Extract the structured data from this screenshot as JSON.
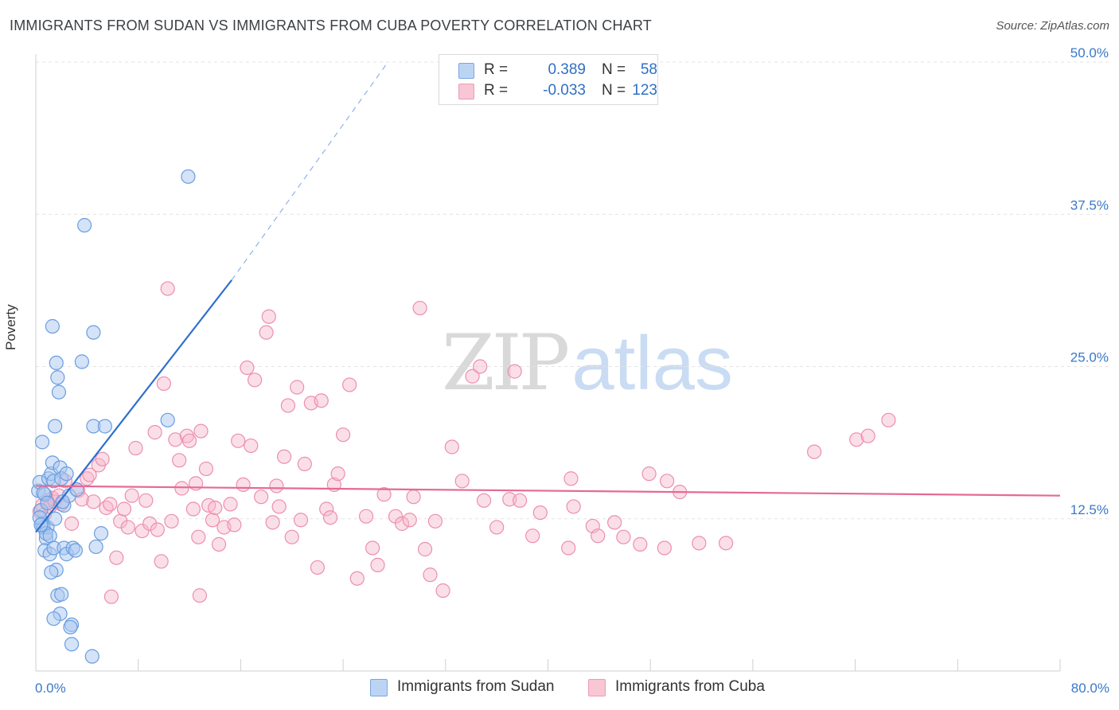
{
  "header": {
    "title": "IMMIGRANTS FROM SUDAN VS IMMIGRANTS FROM CUBA POVERTY CORRELATION CHART",
    "source": "Source: ZipAtlas.com"
  },
  "colors": {
    "sudan_fill": "#a9c8f0",
    "sudan_stroke": "#6a9de0",
    "sudan_line": "#2e6fce",
    "cuba_fill": "#f6b9cc",
    "cuba_stroke": "#ec8fac",
    "cuba_line": "#e56a95",
    "grid": "#e3e3e3",
    "axis_label": "#3a78c9"
  },
  "legend": {
    "rows": [
      {
        "r_label": "R =",
        "r_value": "0.389",
        "n_label": "N =",
        "n_value": "58"
      },
      {
        "r_label": "R =",
        "r_value": "-0.033",
        "n_label": "N =",
        "n_value": "123"
      }
    ]
  },
  "bottom_legend": {
    "sudan": "Immigrants from Sudan",
    "cuba": "Immigrants from Cuba"
  },
  "watermark": {
    "zip": "ZIP",
    "atlas": "atlas"
  },
  "chart_data": {
    "type": "scatter",
    "title": "IMMIGRANTS FROM SUDAN VS IMMIGRANTS FROM CUBA POVERTY CORRELATION CHART",
    "xlabel": "",
    "ylabel": "Poverty",
    "xlim": [
      0,
      80
    ],
    "ylim": [
      0,
      50
    ],
    "x_tick_labels": [
      "0.0%",
      "80.0%"
    ],
    "y_ticks": [
      {
        "value": 12.5,
        "label": "12.5%"
      },
      {
        "value": 25.0,
        "label": "25.0%"
      },
      {
        "value": 37.5,
        "label": "37.5%"
      },
      {
        "value": 50.0,
        "label": "50.0%"
      }
    ],
    "series": [
      {
        "name": "Immigrants from Sudan",
        "R": 0.389,
        "N": 58,
        "trend": {
          "x0": 0.0,
          "y0": 11.4,
          "x1": 15.3,
          "y1": 32.1,
          "dash_to_x": 27.5,
          "dash_to_y": 50.0
        },
        "points": [
          [
            0.2,
            14.8
          ],
          [
            0.3,
            15.5
          ],
          [
            0.4,
            13.2
          ],
          [
            0.5,
            12.1
          ],
          [
            0.6,
            11.8
          ],
          [
            0.7,
            14.5
          ],
          [
            0.3,
            12.6
          ],
          [
            0.8,
            10.9
          ],
          [
            0.5,
            18.8
          ],
          [
            1.0,
            15.8
          ],
          [
            1.2,
            16.2
          ],
          [
            1.3,
            17.1
          ],
          [
            1.4,
            15.6
          ],
          [
            1.5,
            20.1
          ],
          [
            1.6,
            25.3
          ],
          [
            1.7,
            24.1
          ],
          [
            1.8,
            22.9
          ],
          [
            1.3,
            28.3
          ],
          [
            1.9,
            16.7
          ],
          [
            2.0,
            15.8
          ],
          [
            2.2,
            13.6
          ],
          [
            2.4,
            16.2
          ],
          [
            2.6,
            14.4
          ],
          [
            0.9,
            11.8
          ],
          [
            0.8,
            11.3
          ],
          [
            1.1,
            11.1
          ],
          [
            0.7,
            9.9
          ],
          [
            1.1,
            9.6
          ],
          [
            1.4,
            10.1
          ],
          [
            1.6,
            8.3
          ],
          [
            1.2,
            8.1
          ],
          [
            1.7,
            6.2
          ],
          [
            2.0,
            6.3
          ],
          [
            1.9,
            4.7
          ],
          [
            1.4,
            4.3
          ],
          [
            2.8,
            3.8
          ],
          [
            2.7,
            3.6
          ],
          [
            2.8,
            2.2
          ],
          [
            4.4,
            1.2
          ],
          [
            2.2,
            10.1
          ],
          [
            2.4,
            9.6
          ],
          [
            2.9,
            10.1
          ],
          [
            3.1,
            9.9
          ],
          [
            4.7,
            10.2
          ],
          [
            5.1,
            11.3
          ],
          [
            4.5,
            20.1
          ],
          [
            5.4,
            20.1
          ],
          [
            3.6,
            25.4
          ],
          [
            4.5,
            27.8
          ],
          [
            3.8,
            36.6
          ],
          [
            10.3,
            20.6
          ],
          [
            11.9,
            40.6
          ],
          [
            2.1,
            13.9
          ],
          [
            0.6,
            14.6
          ],
          [
            0.9,
            13.8
          ],
          [
            1.5,
            12.5
          ],
          [
            3.2,
            14.9
          ],
          [
            0.4,
            12.0
          ]
        ]
      },
      {
        "name": "Immigrants from Cuba",
        "R": -0.033,
        "N": 123,
        "trend": {
          "x0": 0.0,
          "y0": 15.2,
          "x1": 80.0,
          "y1": 14.4
        },
        "points": [
          [
            0.3,
            13.1
          ],
          [
            0.5,
            13.6
          ],
          [
            0.7,
            12.9
          ],
          [
            0.9,
            14.0
          ],
          [
            1.1,
            13.5
          ],
          [
            1.3,
            14.2
          ],
          [
            1.5,
            13.9
          ],
          [
            1.8,
            14.4
          ],
          [
            2.0,
            13.7
          ],
          [
            2.3,
            15.6
          ],
          [
            2.8,
            12.1
          ],
          [
            3.3,
            14.8
          ],
          [
            3.6,
            14.1
          ],
          [
            4.0,
            15.8
          ],
          [
            4.2,
            16.1
          ],
          [
            4.5,
            13.9
          ],
          [
            4.9,
            16.9
          ],
          [
            5.2,
            17.4
          ],
          [
            5.5,
            13.4
          ],
          [
            5.8,
            13.7
          ],
          [
            6.3,
            9.3
          ],
          [
            6.6,
            12.3
          ],
          [
            6.9,
            13.3
          ],
          [
            7.2,
            11.8
          ],
          [
            7.5,
            14.4
          ],
          [
            7.8,
            18.3
          ],
          [
            8.3,
            11.5
          ],
          [
            8.6,
            14.0
          ],
          [
            8.9,
            12.1
          ],
          [
            9.3,
            19.6
          ],
          [
            9.5,
            11.6
          ],
          [
            9.8,
            9.0
          ],
          [
            10.0,
            23.6
          ],
          [
            10.3,
            31.4
          ],
          [
            10.6,
            12.3
          ],
          [
            10.9,
            19.0
          ],
          [
            11.2,
            17.3
          ],
          [
            11.4,
            15.0
          ],
          [
            11.8,
            19.3
          ],
          [
            12.0,
            18.9
          ],
          [
            12.3,
            13.3
          ],
          [
            12.5,
            15.4
          ],
          [
            12.7,
            11.0
          ],
          [
            12.9,
            19.7
          ],
          [
            13.3,
            16.6
          ],
          [
            13.5,
            13.6
          ],
          [
            13.8,
            12.4
          ],
          [
            14.0,
            13.4
          ],
          [
            14.3,
            10.4
          ],
          [
            14.7,
            11.8
          ],
          [
            15.2,
            13.7
          ],
          [
            15.5,
            12.0
          ],
          [
            15.8,
            18.9
          ],
          [
            16.2,
            15.3
          ],
          [
            16.5,
            24.9
          ],
          [
            16.8,
            18.5
          ],
          [
            17.1,
            23.9
          ],
          [
            17.6,
            14.3
          ],
          [
            18.0,
            27.8
          ],
          [
            18.2,
            29.1
          ],
          [
            18.5,
            12.2
          ],
          [
            18.8,
            15.2
          ],
          [
            19.0,
            13.5
          ],
          [
            19.4,
            17.6
          ],
          [
            19.7,
            21.8
          ],
          [
            20.0,
            11.0
          ],
          [
            20.4,
            23.3
          ],
          [
            20.7,
            12.4
          ],
          [
            21.0,
            17.0
          ],
          [
            21.5,
            22.0
          ],
          [
            22.0,
            8.5
          ],
          [
            22.3,
            22.2
          ],
          [
            22.7,
            13.3
          ],
          [
            23.0,
            12.6
          ],
          [
            23.3,
            15.3
          ],
          [
            23.6,
            16.2
          ],
          [
            24.0,
            19.4
          ],
          [
            24.5,
            23.5
          ],
          [
            25.1,
            7.6
          ],
          [
            25.8,
            12.7
          ],
          [
            26.3,
            10.1
          ],
          [
            26.7,
            8.7
          ],
          [
            27.2,
            14.5
          ],
          [
            28.1,
            12.7
          ],
          [
            28.6,
            12.1
          ],
          [
            29.2,
            12.4
          ],
          [
            29.5,
            14.3
          ],
          [
            30.0,
            29.8
          ],
          [
            30.4,
            10.0
          ],
          [
            30.8,
            7.9
          ],
          [
            31.2,
            12.3
          ],
          [
            31.8,
            6.6
          ],
          [
            32.5,
            18.4
          ],
          [
            33.3,
            15.6
          ],
          [
            34.1,
            24.2
          ],
          [
            34.7,
            25.0
          ],
          [
            35.0,
            14.0
          ],
          [
            36.0,
            11.8
          ],
          [
            37.0,
            14.1
          ],
          [
            37.4,
            24.6
          ],
          [
            37.8,
            14.0
          ],
          [
            38.8,
            11.1
          ],
          [
            39.4,
            13.0
          ],
          [
            41.6,
            10.1
          ],
          [
            41.8,
            15.8
          ],
          [
            42.0,
            13.5
          ],
          [
            43.5,
            11.9
          ],
          [
            43.9,
            11.1
          ],
          [
            45.2,
            12.2
          ],
          [
            45.9,
            11.0
          ],
          [
            47.2,
            10.4
          ],
          [
            47.9,
            16.2
          ],
          [
            49.1,
            10.1
          ],
          [
            49.3,
            15.6
          ],
          [
            50.3,
            14.7
          ],
          [
            51.8,
            10.5
          ],
          [
            53.9,
            10.5
          ],
          [
            60.8,
            18.0
          ],
          [
            64.1,
            19.0
          ],
          [
            65.0,
            19.3
          ],
          [
            66.6,
            20.6
          ],
          [
            5.9,
            6.1
          ],
          [
            12.8,
            6.2
          ]
        ]
      }
    ]
  }
}
